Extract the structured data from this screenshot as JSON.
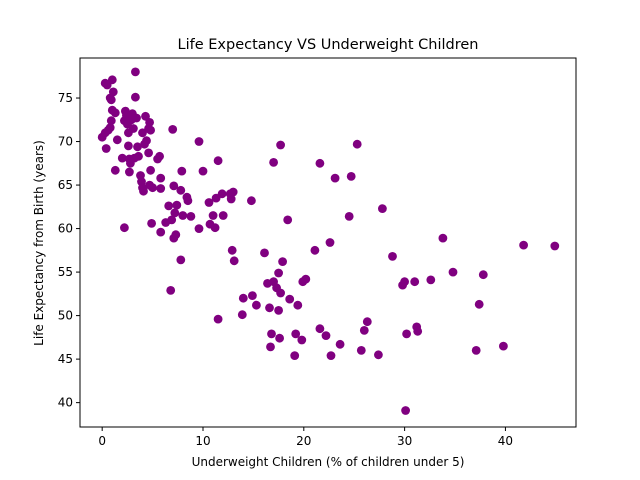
{
  "chart_data": {
    "type": "scatter",
    "title": "Life Expectancy VS Underweight Children",
    "xlabel": "Underweight Children (% of children under 5)",
    "ylabel": "Life Expectancy from Birth (years)",
    "xlim": [
      -2.2,
      47.0
    ],
    "ylim": [
      37.2,
      79.6
    ],
    "xticks": [
      0,
      10,
      20,
      30,
      40
    ],
    "yticks": [
      40,
      45,
      50,
      55,
      60,
      65,
      70,
      75
    ],
    "grid": false,
    "legend": "none",
    "marker_color": "#800080",
    "series": [
      {
        "points": [
          [
            0.3,
            76.7
          ],
          [
            0.5,
            76.5
          ],
          [
            1.0,
            77.1
          ],
          [
            0.8,
            75.0
          ],
          [
            1.1,
            75.7
          ],
          [
            0.9,
            74.8
          ],
          [
            0.0,
            70.5
          ],
          [
            0.4,
            69.2
          ],
          [
            0.6,
            71.3
          ],
          [
            0.3,
            71.0
          ],
          [
            0.8,
            71.6
          ],
          [
            0.9,
            72.4
          ],
          [
            1.0,
            73.6
          ],
          [
            1.3,
            73.3
          ],
          [
            1.5,
            70.2
          ],
          [
            1.3,
            66.7
          ],
          [
            2.2,
            60.1
          ],
          [
            2.0,
            68.1
          ],
          [
            2.2,
            72.4
          ],
          [
            2.3,
            73.5
          ],
          [
            2.4,
            73.0
          ],
          [
            2.5,
            72.0
          ],
          [
            2.6,
            71.0
          ],
          [
            2.6,
            69.5
          ],
          [
            2.7,
            68.0
          ],
          [
            2.8,
            67.5
          ],
          [
            2.7,
            66.5
          ],
          [
            2.9,
            72.5
          ],
          [
            3.0,
            73.2
          ],
          [
            3.1,
            71.5
          ],
          [
            3.3,
            78.0
          ],
          [
            3.3,
            75.1
          ],
          [
            3.4,
            72.7
          ],
          [
            3.5,
            69.4
          ],
          [
            3.2,
            68.1
          ],
          [
            3.6,
            68.3
          ],
          [
            3.8,
            66.1
          ],
          [
            3.9,
            65.4
          ],
          [
            4.0,
            64.7
          ],
          [
            4.1,
            64.3
          ],
          [
            4.0,
            71.0
          ],
          [
            4.2,
            69.7
          ],
          [
            4.3,
            72.9
          ],
          [
            4.4,
            70.1
          ],
          [
            4.6,
            71.5
          ],
          [
            4.7,
            72.2
          ],
          [
            4.8,
            71.3
          ],
          [
            4.6,
            68.7
          ],
          [
            4.8,
            66.7
          ],
          [
            4.7,
            65.0
          ],
          [
            5.0,
            64.7
          ],
          [
            4.9,
            60.6
          ],
          [
            5.5,
            68.0
          ],
          [
            5.7,
            68.3
          ],
          [
            5.8,
            65.8
          ],
          [
            5.8,
            64.6
          ],
          [
            5.8,
            59.6
          ],
          [
            6.3,
            60.7
          ],
          [
            6.6,
            62.6
          ],
          [
            6.9,
            61.0
          ],
          [
            6.8,
            52.9
          ],
          [
            7.1,
            58.9
          ],
          [
            7.0,
            71.4
          ],
          [
            7.1,
            64.9
          ],
          [
            7.3,
            59.3
          ],
          [
            7.2,
            61.8
          ],
          [
            7.4,
            62.7
          ],
          [
            7.8,
            56.4
          ],
          [
            7.8,
            64.4
          ],
          [
            7.9,
            66.6
          ],
          [
            8.0,
            61.5
          ],
          [
            8.4,
            63.6
          ],
          [
            8.5,
            63.2
          ],
          [
            8.8,
            61.4
          ],
          [
            9.6,
            70.0
          ],
          [
            9.6,
            60.0
          ],
          [
            10.0,
            66.6
          ],
          [
            10.6,
            63.0
          ],
          [
            10.7,
            60.5
          ],
          [
            11.0,
            61.5
          ],
          [
            11.2,
            60.1
          ],
          [
            11.3,
            63.5
          ],
          [
            11.5,
            67.8
          ],
          [
            11.5,
            49.6
          ],
          [
            11.9,
            64.0
          ],
          [
            12.0,
            61.5
          ],
          [
            12.7,
            64.0
          ],
          [
            12.9,
            57.5
          ],
          [
            12.8,
            63.4
          ],
          [
            13.1,
            56.3
          ],
          [
            13.0,
            64.2
          ],
          [
            13.9,
            50.1
          ],
          [
            14.0,
            52.0
          ],
          [
            14.9,
            52.3
          ],
          [
            14.8,
            63.2
          ],
          [
            15.3,
            51.2
          ],
          [
            16.1,
            57.2
          ],
          [
            16.4,
            53.7
          ],
          [
            16.6,
            50.9
          ],
          [
            16.8,
            47.9
          ],
          [
            16.7,
            46.4
          ],
          [
            17.0,
            53.9
          ],
          [
            17.0,
            67.6
          ],
          [
            17.3,
            53.2
          ],
          [
            17.5,
            50.6
          ],
          [
            17.7,
            69.6
          ],
          [
            17.6,
            47.4
          ],
          [
            17.7,
            52.6
          ],
          [
            17.5,
            54.9
          ],
          [
            17.9,
            56.2
          ],
          [
            18.4,
            61.0
          ],
          [
            18.6,
            51.9
          ],
          [
            19.1,
            45.4
          ],
          [
            19.2,
            47.9
          ],
          [
            19.4,
            51.2
          ],
          [
            19.8,
            47.2
          ],
          [
            19.9,
            53.9
          ],
          [
            20.2,
            54.2
          ],
          [
            21.1,
            57.5
          ],
          [
            21.6,
            67.5
          ],
          [
            21.6,
            48.5
          ],
          [
            22.2,
            47.7
          ],
          [
            22.6,
            58.4
          ],
          [
            22.7,
            45.4
          ],
          [
            23.1,
            65.8
          ],
          [
            23.6,
            46.7
          ],
          [
            24.5,
            61.4
          ],
          [
            24.7,
            66.0
          ],
          [
            25.3,
            69.7
          ],
          [
            25.7,
            46.0
          ],
          [
            26.0,
            48.3
          ],
          [
            26.3,
            49.3
          ],
          [
            27.4,
            45.5
          ],
          [
            27.8,
            62.3
          ],
          [
            28.8,
            56.8
          ],
          [
            29.8,
            53.5
          ],
          [
            30.0,
            53.9
          ],
          [
            30.1,
            39.1
          ],
          [
            30.2,
            47.9
          ],
          [
            31.0,
            53.9
          ],
          [
            31.2,
            48.7
          ],
          [
            31.3,
            48.2
          ],
          [
            32.6,
            54.1
          ],
          [
            33.8,
            58.9
          ],
          [
            34.8,
            55.0
          ],
          [
            37.1,
            46.0
          ],
          [
            37.4,
            51.3
          ],
          [
            37.8,
            54.7
          ],
          [
            39.8,
            46.5
          ],
          [
            41.8,
            58.1
          ],
          [
            44.9,
            58.0
          ]
        ]
      }
    ]
  }
}
